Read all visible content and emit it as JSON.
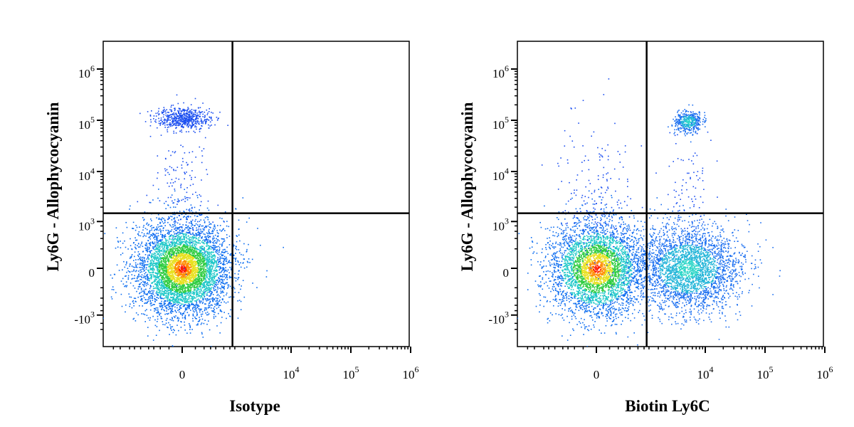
{
  "chart_data": [
    {
      "type": "scatter",
      "subtype": "flow-cytometry-density-dot-plot",
      "xlabel": "Isotype",
      "ylabel": "Ly6G - Allophycocyanin",
      "x_scale": "biexponential",
      "y_scale": "biexponential",
      "x_ticks": [
        {
          "value": 0,
          "base": "0",
          "exp": ""
        },
        {
          "value": 10000,
          "base": "10",
          "exp": "4"
        },
        {
          "value": 100000,
          "base": "10",
          "exp": "5"
        },
        {
          "value": 1000000,
          "base": "10",
          "exp": "6"
        }
      ],
      "y_ticks": [
        {
          "value": 1000000,
          "base": "10",
          "exp": "6"
        },
        {
          "value": 100000,
          "base": "10",
          "exp": "5"
        },
        {
          "value": 10000,
          "base": "10",
          "exp": "4"
        },
        {
          "value": 1000,
          "base": "10",
          "exp": "3"
        },
        {
          "value": 0,
          "base": "0",
          "exp": ""
        },
        {
          "value": -1000,
          "base": "-10",
          "exp": "3"
        }
      ],
      "quadrant_gate": {
        "x": 900,
        "y": 1500
      },
      "populations": [
        {
          "x": 0,
          "y": 0,
          "sx": 0.55,
          "sy": 0.55,
          "n": 5200,
          "peak_color": "red"
        },
        {
          "x": 0,
          "y": 110000,
          "sx": 0.32,
          "sy": 0.13,
          "n": 560,
          "peak_color": "blue"
        },
        {
          "x": 0,
          "y": 5000,
          "sx": 0.35,
          "sy": 0.9,
          "n": 160,
          "peak_color": "blue"
        }
      ],
      "grid": false,
      "legend": "none"
    },
    {
      "type": "scatter",
      "subtype": "flow-cytometry-density-dot-plot",
      "xlabel": "Biotin Ly6C",
      "ylabel": "Ly6G - Allophycocyanin",
      "x_scale": "biexponential",
      "y_scale": "biexponential",
      "x_ticks": [
        {
          "value": 0,
          "base": "0",
          "exp": ""
        },
        {
          "value": 10000,
          "base": "10",
          "exp": "4"
        },
        {
          "value": 100000,
          "base": "10",
          "exp": "5"
        },
        {
          "value": 1000000,
          "base": "10",
          "exp": "6"
        }
      ],
      "y_ticks": [
        {
          "value": 1000000,
          "base": "10",
          "exp": "6"
        },
        {
          "value": 100000,
          "base": "10",
          "exp": "5"
        },
        {
          "value": 10000,
          "base": "10",
          "exp": "4"
        },
        {
          "value": 1000,
          "base": "10",
          "exp": "3"
        },
        {
          "value": 0,
          "base": "0",
          "exp": ""
        },
        {
          "value": -1000,
          "base": "-10",
          "exp": "3"
        }
      ],
      "quadrant_gate": {
        "x": 900,
        "y": 1500
      },
      "populations": [
        {
          "x": 0,
          "y": 0,
          "sx": 0.55,
          "sy": 0.55,
          "n": 3800,
          "peak_color": "red"
        },
        {
          "x": 5000,
          "y": 0,
          "sx": 0.6,
          "sy": 0.5,
          "n": 3000,
          "peak_color": "cyan"
        },
        {
          "x": 5000,
          "y": 95000,
          "sx": 0.16,
          "sy": 0.13,
          "n": 420,
          "peak_color": "cyan"
        },
        {
          "x": 0,
          "y": 3000,
          "sx": 0.45,
          "sy": 0.9,
          "n": 220,
          "peak_color": "blue"
        },
        {
          "x": 5000,
          "y": 6000,
          "sx": 0.3,
          "sy": 0.8,
          "n": 90,
          "peak_color": "blue"
        }
      ],
      "grid": false,
      "legend": "none"
    }
  ]
}
